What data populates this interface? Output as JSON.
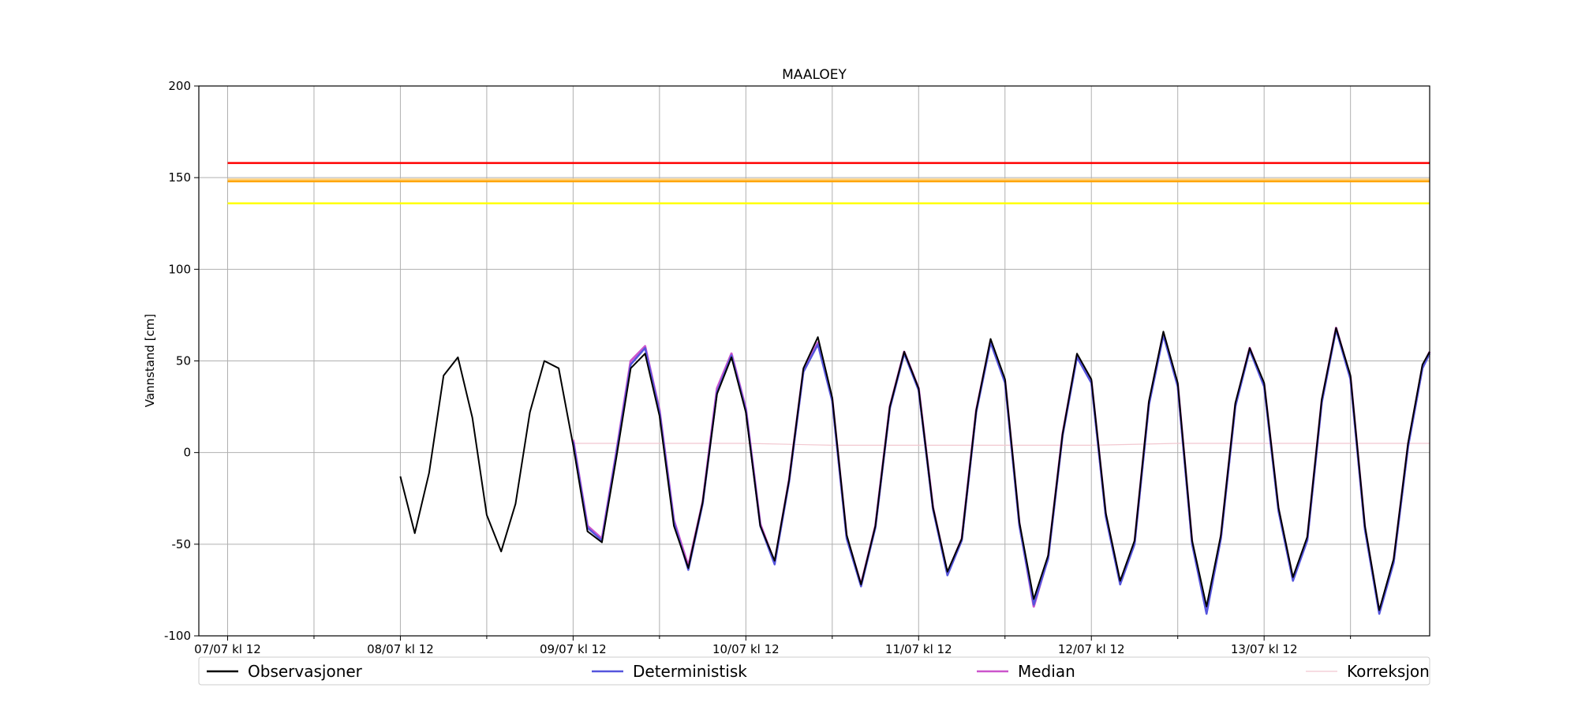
{
  "chart_data": {
    "type": "line",
    "title": "MAALOEY",
    "xlabel": "",
    "ylabel": "Vannstand [cm]",
    "ylim": [
      -100,
      200
    ],
    "yticks": [
      -100,
      -50,
      0,
      50,
      100,
      150,
      200
    ],
    "xlim_hours": [
      -4,
      167
    ],
    "x_unit": "hours after 07/07 kl 12",
    "xtick_labels": [
      "07/07 kl 12",
      "08/07 kl 12",
      "09/07 kl 12",
      "10/07 kl 12",
      "11/07 kl 12",
      "12/07 kl 12",
      "13/07 kl 12"
    ],
    "xtick_hours": [
      0,
      24,
      48,
      72,
      96,
      120,
      144
    ],
    "minor_tick_hours": [
      12,
      36,
      60,
      84,
      108,
      132,
      156
    ],
    "grid": true,
    "legend_position": "bottom",
    "thresholds": [
      {
        "value": 158,
        "color": "#ff0000"
      },
      {
        "value": 149,
        "color": "#ffd27f"
      },
      {
        "value": 148,
        "color": "#ffa500"
      },
      {
        "value": 136,
        "color": "#ffff00"
      }
    ],
    "series": [
      {
        "name": "Observasjoner",
        "color": "#000000",
        "x": [
          24,
          26,
          28,
          30,
          32,
          34,
          36,
          38,
          40,
          42,
          44,
          46,
          48,
          50,
          52,
          54,
          56,
          58,
          60,
          62,
          64,
          66,
          68,
          70,
          72,
          74,
          76,
          78,
          80,
          82,
          84,
          86,
          88,
          90,
          92,
          94,
          96,
          98,
          100,
          102,
          104,
          106,
          108,
          110,
          112,
          114,
          116,
          118,
          120,
          122,
          124,
          126,
          128,
          130,
          132,
          134,
          136,
          138,
          140,
          142,
          144,
          146,
          148,
          150,
          152,
          154,
          156,
          158,
          160,
          162,
          164,
          166,
          167
        ],
        "y": [
          -13,
          -44,
          -11,
          42,
          52,
          19,
          -34,
          -54,
          -28,
          22,
          50,
          46,
          4,
          -43,
          -49,
          -3,
          46,
          54,
          20,
          -40,
          -63,
          -27,
          32,
          52,
          22,
          -40,
          -59,
          -15,
          46,
          63,
          30,
          -45,
          -72,
          -40,
          25,
          55,
          35,
          -30,
          -65,
          -47,
          23,
          62,
          40,
          -38,
          -80,
          -56,
          10,
          54,
          40,
          -33,
          -70,
          -48,
          28,
          66,
          38,
          -48,
          -84,
          -45,
          27,
          57,
          38,
          -30,
          -68,
          -46,
          29,
          68,
          42,
          -40,
          -86,
          -58,
          5,
          48,
          55
        ]
      },
      {
        "name": "Deterministisk",
        "color": "#5555dd",
        "x": [
          48,
          50,
          52,
          54,
          56,
          58,
          60,
          62,
          64,
          66,
          68,
          70,
          72,
          74,
          76,
          78,
          80,
          82,
          84,
          86,
          88,
          90,
          92,
          94,
          96,
          98,
          100,
          102,
          104,
          106,
          108,
          110,
          112,
          114,
          116,
          118,
          120,
          122,
          124,
          126,
          128,
          130,
          132,
          134,
          136,
          138,
          140,
          142,
          144,
          146,
          148,
          150,
          152,
          154,
          156,
          158,
          160,
          162,
          164,
          166,
          167
        ],
        "y": [
          6,
          -41,
          -48,
          -1,
          48,
          57,
          22,
          -38,
          -64,
          -28,
          33,
          53,
          23,
          -40,
          -61,
          -16,
          44,
          59,
          28,
          -47,
          -73,
          -41,
          24,
          54,
          34,
          -31,
          -67,
          -48,
          22,
          60,
          38,
          -40,
          -83,
          -58,
          9,
          52,
          38,
          -35,
          -72,
          -50,
          26,
          64,
          36,
          -50,
          -88,
          -47,
          25,
          56,
          36,
          -32,
          -70,
          -48,
          27,
          67,
          40,
          -42,
          -88,
          -60,
          3,
          46,
          54
        ]
      },
      {
        "name": "Median",
        "color": "#cc55cc",
        "x": [
          48,
          50,
          52,
          54,
          56,
          58,
          60,
          62,
          64,
          66,
          68,
          70,
          72,
          74,
          76,
          78,
          80,
          82,
          84,
          86,
          88,
          90,
          92,
          94,
          96,
          98,
          100,
          102,
          104,
          106,
          108,
          110,
          112,
          114,
          116,
          118,
          120,
          122,
          124,
          126,
          128,
          130,
          132,
          134,
          136,
          138,
          140,
          142,
          144,
          146,
          148,
          150,
          152,
          154,
          156,
          158,
          160,
          162,
          164,
          166,
          167
        ],
        "y": [
          7,
          -40,
          -47,
          0,
          50,
          58,
          23,
          -37,
          -62,
          -27,
          35,
          54,
          24,
          -39,
          -60,
          -15,
          45,
          60,
          29,
          -46,
          -72,
          -40,
          25,
          55,
          35,
          -30,
          -66,
          -47,
          23,
          61,
          39,
          -39,
          -84,
          -57,
          10,
          53,
          39,
          -34,
          -71,
          -49,
          27,
          65,
          37,
          -49,
          -87,
          -46,
          26,
          57,
          37,
          -31,
          -69,
          -47,
          28,
          68,
          41,
          -41,
          -87,
          -59,
          4,
          47,
          55
        ]
      },
      {
        "name": "Korreksjon",
        "color": "#f2c8d0",
        "x": [
          48,
          60,
          72,
          84,
          96,
          108,
          120,
          132,
          144,
          156,
          167
        ],
        "y": [
          5,
          5,
          5,
          4,
          4,
          4,
          4,
          5,
          5,
          5,
          5
        ]
      }
    ]
  }
}
